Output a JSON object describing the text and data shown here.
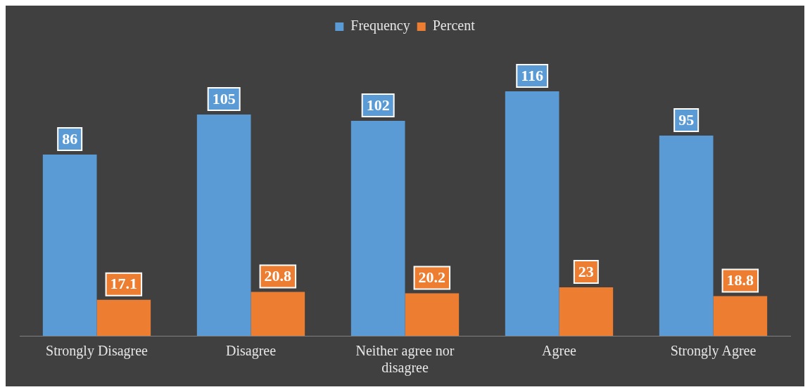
{
  "chart_data": {
    "type": "bar",
    "categories": [
      "Strongly Disagree",
      "Disagree",
      "Neither agree nor disagree",
      "Agree",
      "Strongly Agree"
    ],
    "series": [
      {
        "name": "Frequency",
        "color": "#5b9bd5",
        "values": [
          86,
          105,
          102,
          116,
          95
        ]
      },
      {
        "name": "Percent",
        "color": "#ed7d31",
        "values": [
          17.1,
          20.8,
          20.2,
          23,
          18.8
        ]
      }
    ],
    "data_labels": true,
    "legend": "top",
    "grid": false
  }
}
